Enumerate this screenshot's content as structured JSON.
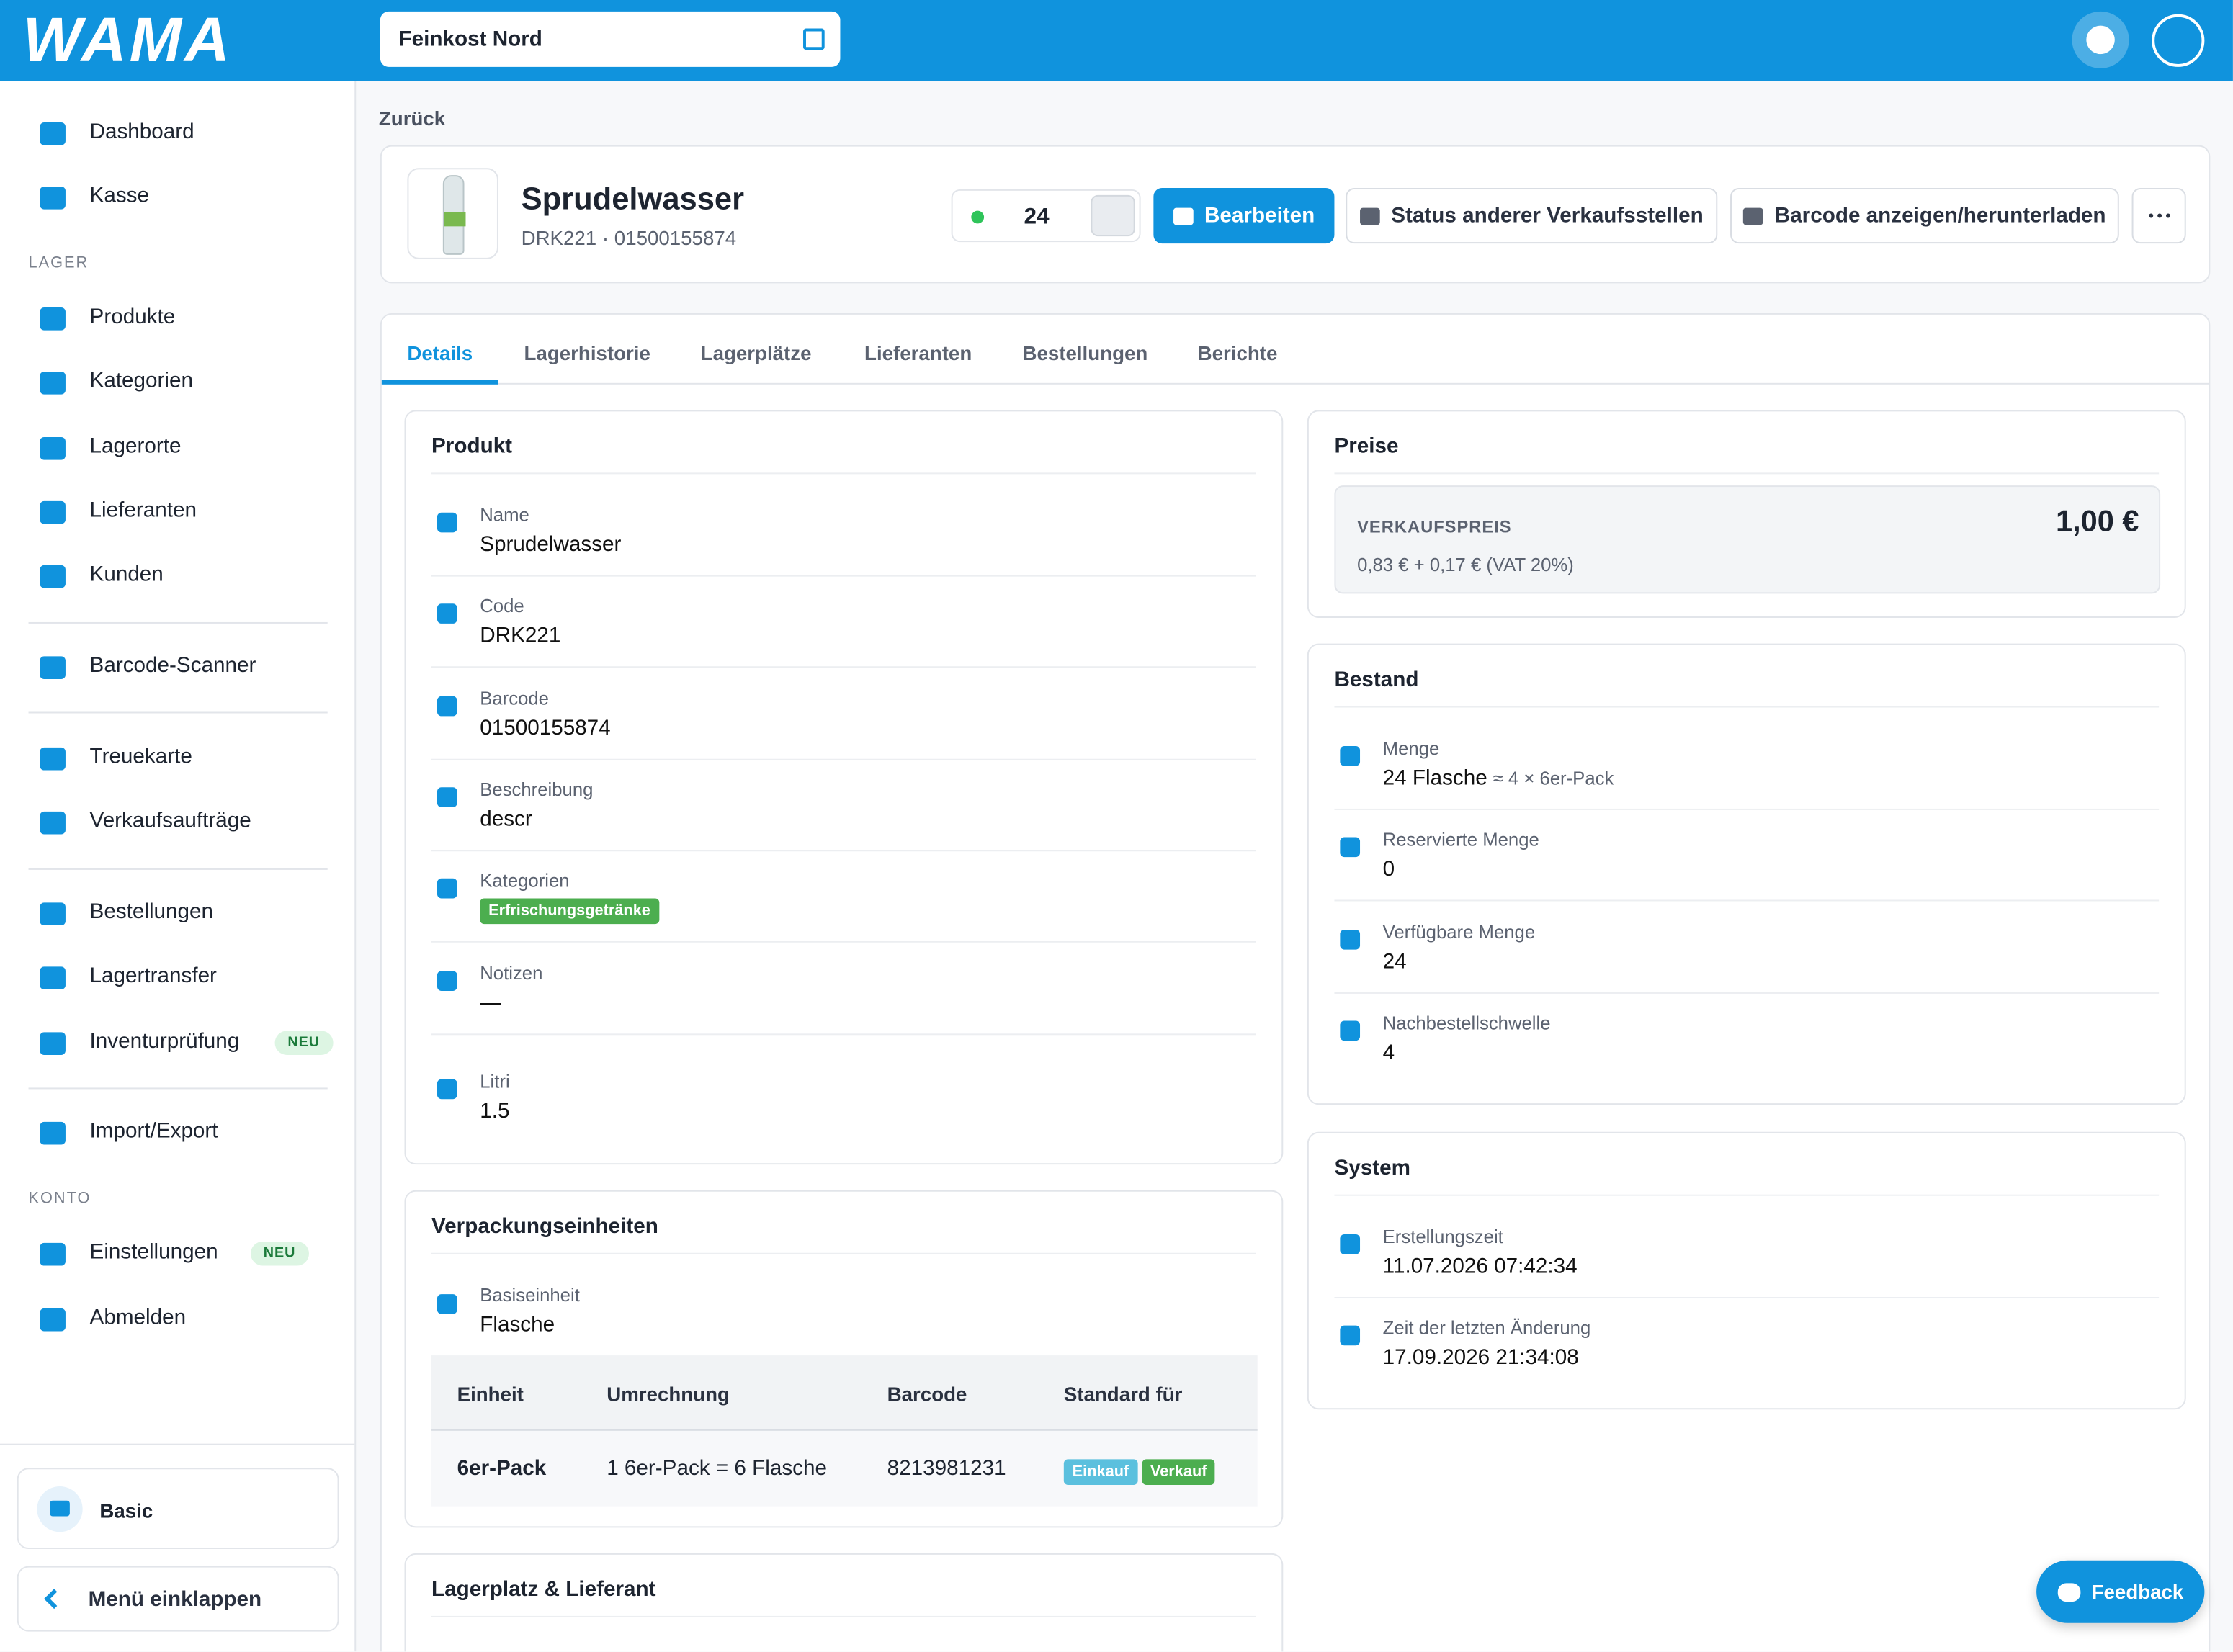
{
  "header": {
    "logo": "WAMA",
    "store": "Feinkost Nord"
  },
  "sidebar": {
    "sections": [
      {
        "items": [
          {
            "label": "Dashboard"
          },
          {
            "label": "Kasse"
          }
        ]
      },
      {
        "heading": "LAGER",
        "items": [
          {
            "label": "Produkte"
          },
          {
            "label": "Kategorien"
          },
          {
            "label": "Lagerorte"
          },
          {
            "label": "Lieferanten"
          },
          {
            "label": "Kunden"
          }
        ]
      },
      {
        "items": [
          {
            "label": "Barcode-Scanner"
          }
        ]
      },
      {
        "items": [
          {
            "label": "Treuekarte"
          },
          {
            "label": "Verkaufsaufträge"
          }
        ]
      },
      {
        "items": [
          {
            "label": "Bestellungen"
          },
          {
            "label": "Lagertransfer"
          },
          {
            "label": "Inventurprüfung",
            "badge": "NEU"
          }
        ]
      },
      {
        "items": [
          {
            "label": "Import/Export"
          }
        ]
      },
      {
        "heading": "KONTO",
        "items": [
          {
            "label": "Einstellungen",
            "badge": "NEU"
          },
          {
            "label": "Abmelden"
          }
        ]
      }
    ],
    "plan": "Basic",
    "collapse": "Menü einklappen"
  },
  "back": "Zurück",
  "product": {
    "name": "Sprudelwasser",
    "subtitle": "DRK221 · 01500155874",
    "stock": "24",
    "actions": [
      "Bearbeiten",
      "Status anderer Verkaufsstellen",
      "Barcode anzeigen/herunterladen"
    ]
  },
  "tabs": [
    "Details",
    "Lagerhistorie",
    "Lagerplätze",
    "Lieferanten",
    "Bestellungen",
    "Berichte"
  ],
  "product_card": {
    "title": "Produkt",
    "fields": [
      {
        "label": "Name",
        "value": "Sprudelwasser"
      },
      {
        "label": "Code",
        "value": "DRK221"
      },
      {
        "label": "Barcode",
        "value": "01500155874"
      },
      {
        "label": "Beschreibung",
        "value": "descr"
      },
      {
        "label": "Kategorien",
        "tags": [
          "Erfrischungsgetränke"
        ]
      },
      {
        "label": "Notizen",
        "value": "—"
      },
      {
        "label": "Litri",
        "value": "1.5"
      }
    ]
  },
  "packaging": {
    "title": "Verpackungseinheiten",
    "base": {
      "label": "Basiseinheit",
      "value": "Flasche"
    },
    "table": {
      "headers": [
        "Einheit",
        "Umrechnung",
        "Barcode",
        "Standard für"
      ],
      "rows": [
        {
          "unit": "6er-Pack",
          "conversion": "1 6er-Pack = 6 Flasche",
          "barcode": "8213981231",
          "default_for": [
            "Einkauf",
            "Verkauf"
          ]
        }
      ]
    }
  },
  "storage": {
    "title": "Lagerplatz & Lieferant"
  },
  "prices": {
    "title": "Preise",
    "label": "VERKAUFSPREIS",
    "price": "1,00 €",
    "detail": "0,83 € + 0,17 € (VAT 20%)"
  },
  "inventory": {
    "title": "Bestand",
    "fields": [
      {
        "label": "Menge",
        "value": "24 Flasche",
        "note": "≈ 4 × 6er-Pack"
      },
      {
        "label": "Reservierte Menge",
        "value": "0"
      },
      {
        "label": "Verfügbare Menge",
        "value": "24"
      },
      {
        "label": "Nachbestellschwelle",
        "value": "4"
      }
    ]
  },
  "system": {
    "title": "System",
    "fields": [
      {
        "label": "Erstellungszeit",
        "value": "11.07.2026 07:42:34"
      },
      {
        "label": "Zeit der letzten Änderung",
        "value": "17.09.2026 21:34:08"
      }
    ]
  },
  "feedback": "Feedback"
}
